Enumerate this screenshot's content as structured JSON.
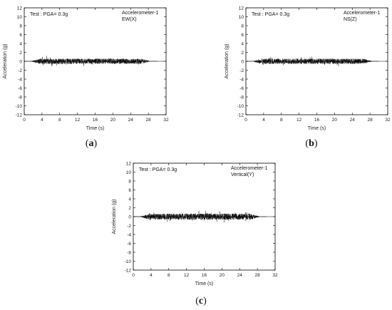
{
  "chart_data": [
    {
      "type": "line",
      "caption_letter": "a",
      "annotation_test": "Test : PGA= 0.3g",
      "sensor_name": "Accelerometer-1",
      "direction": "EW(X)",
      "xlabel": "Time (s)",
      "ylabel": "Acceleration (g)",
      "xlim": [
        0,
        32
      ],
      "ylim": [
        -12,
        12
      ],
      "xticks": [
        0,
        4,
        8,
        12,
        16,
        20,
        24,
        28,
        32
      ],
      "yticks": [
        -12,
        -10,
        -8,
        -6,
        -4,
        -2,
        0,
        2,
        4,
        6,
        8,
        10,
        12
      ],
      "grid": false,
      "signal": {
        "duration_s": 30,
        "strong_motion_start_s": 1.5,
        "strong_motion_end_s": 28.5,
        "typical_amplitude_g": 0.6,
        "peak_abs_g": 1.3
      }
    },
    {
      "type": "line",
      "caption_letter": "b",
      "annotation_test": "Test : PGA= 0.3g",
      "sensor_name": "Accelerometer-1",
      "direction": "NS(Z)",
      "xlabel": "Time (s)",
      "ylabel": "Acceleration (g)",
      "xlim": [
        0,
        32
      ],
      "ylim": [
        -12,
        12
      ],
      "xticks": [
        0,
        4,
        8,
        12,
        16,
        20,
        24,
        28,
        32
      ],
      "yticks": [
        -12,
        -10,
        -8,
        -6,
        -4,
        -2,
        0,
        2,
        4,
        6,
        8,
        10,
        12
      ],
      "grid": false,
      "signal": {
        "duration_s": 30,
        "strong_motion_start_s": 1.5,
        "strong_motion_end_s": 28.5,
        "typical_amplitude_g": 0.6,
        "peak_abs_g": 1.2
      }
    },
    {
      "type": "line",
      "caption_letter": "c",
      "annotation_test": "Test : PGA= 0.3g",
      "sensor_name": "Accelerometer-1",
      "direction": "Vertical(Y)",
      "xlabel": "Time (s)",
      "ylabel": "Acceleration (g)",
      "xlim": [
        0,
        32
      ],
      "ylim": [
        -12,
        12
      ],
      "xticks": [
        0,
        4,
        8,
        12,
        16,
        20,
        24,
        28,
        32
      ],
      "yticks": [
        -12,
        -10,
        -8,
        -6,
        -4,
        -2,
        0,
        2,
        4,
        6,
        8,
        10,
        12
      ],
      "grid": false,
      "signal": {
        "duration_s": 30,
        "strong_motion_start_s": 1.5,
        "strong_motion_end_s": 28.5,
        "typical_amplitude_g": 0.7,
        "peak_abs_g": 1.5
      }
    }
  ]
}
